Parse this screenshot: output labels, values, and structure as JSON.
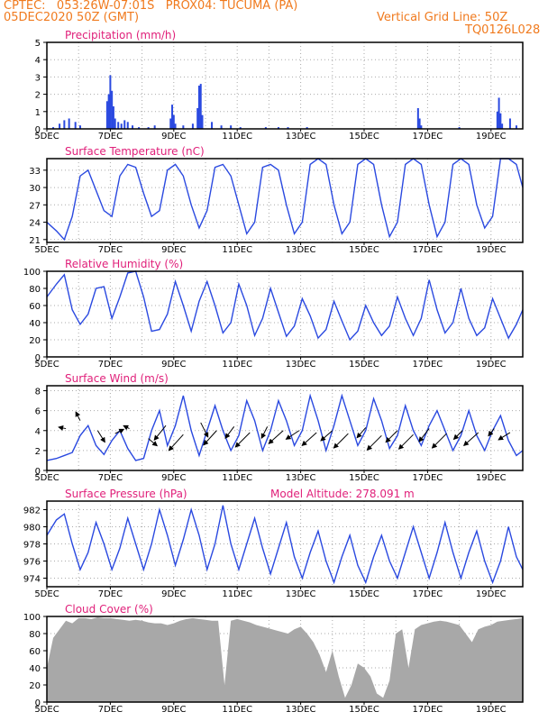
{
  "header": {
    "line1": "CPTEC:   053:26W-07:01S   PROX04: TUCUMA (PA)",
    "line2": "05DEC2020 50Z (GMT)",
    "grid_note": "Vertical Grid Line: 50Z",
    "code": "TQ0126L028",
    "model_altitude": "Model Altitude: 278.091 m"
  },
  "x_ticks": [
    "5DEC",
    "7DEC",
    "9DEC",
    "11DEC",
    "13DEC",
    "15DEC",
    "17DEC",
    "19DEC"
  ],
  "colors": {
    "header": "#f07a1e",
    "title": "#e0207a",
    "line": "#2a49e0",
    "cloud": "#a8a8a8",
    "arrow": "#000000"
  },
  "chart_data": [
    {
      "type": "bar",
      "id": "precip",
      "title": "Precipitation (mm/h)",
      "ylim": [
        0,
        5
      ],
      "yticks": [
        0,
        1,
        2,
        3,
        4,
        5
      ],
      "x": [
        0.2,
        0.4,
        0.55,
        0.7,
        0.9,
        1.05,
        1.9,
        1.95,
        2.0,
        2.05,
        2.1,
        2.15,
        2.25,
        2.35,
        2.45,
        2.55,
        2.7,
        2.9,
        3.2,
        3.4,
        3.9,
        3.95,
        4.0,
        4.05,
        4.3,
        4.6,
        4.75,
        4.8,
        4.85,
        4.9,
        5.2,
        5.5,
        5.8,
        6.1,
        6.9,
        7.3,
        7.6,
        8.2,
        11.7,
        11.75,
        11.8,
        13.0,
        14.2,
        14.25,
        14.3,
        14.35,
        14.6,
        14.8
      ],
      "values": [
        0.1,
        0.3,
        0.5,
        0.6,
        0.4,
        0.2,
        1.6,
        2.0,
        3.1,
        2.2,
        1.3,
        0.6,
        0.4,
        0.3,
        0.5,
        0.4,
        0.2,
        0.1,
        0.1,
        0.2,
        0.6,
        1.4,
        0.8,
        0.3,
        0.2,
        0.3,
        1.2,
        2.5,
        2.6,
        0.8,
        0.4,
        0.2,
        0.2,
        0.1,
        0.1,
        0.1,
        0.1,
        0.1,
        1.2,
        0.6,
        0.2,
        0.1,
        1.0,
        1.8,
        0.9,
        0.3,
        0.6,
        0.2
      ]
    },
    {
      "type": "line",
      "id": "temp",
      "title": "Surface Temperature (nC)",
      "ylim": [
        20.5,
        35
      ],
      "yticks": [
        21,
        24,
        27,
        30,
        33
      ],
      "x": [
        0,
        0.3,
        0.55,
        0.8,
        1.05,
        1.3,
        1.55,
        1.8,
        2.05,
        2.3,
        2.55,
        2.8,
        3.05,
        3.3,
        3.55,
        3.8,
        4.05,
        4.3,
        4.55,
        4.8,
        5.05,
        5.3,
        5.55,
        5.8,
        6.05,
        6.3,
        6.55,
        6.8,
        7.05,
        7.3,
        7.55,
        7.8,
        8.05,
        8.3,
        8.55,
        8.8,
        9.05,
        9.3,
        9.55,
        9.8,
        10.05,
        10.3,
        10.55,
        10.8,
        11.05,
        11.3,
        11.55,
        11.8,
        12.05,
        12.3,
        12.55,
        12.8,
        13.05,
        13.3,
        13.55,
        13.8,
        14.05,
        14.3,
        14.55,
        14.8,
        15.0
      ],
      "values": [
        24,
        22.5,
        21,
        25,
        32,
        33,
        29.5,
        26,
        25,
        32,
        34,
        33.5,
        29,
        25,
        26,
        33,
        34,
        32,
        27,
        23,
        26,
        33.5,
        34,
        32,
        27,
        22,
        24,
        33.5,
        34,
        33,
        27,
        22,
        24,
        34,
        35,
        34,
        27,
        22,
        24,
        34,
        35,
        34,
        27,
        21.5,
        24,
        34,
        35,
        34,
        27,
        21.5,
        24,
        34,
        35,
        34,
        27,
        23,
        25,
        35,
        35,
        34,
        30
      ]
    },
    {
      "type": "line",
      "id": "rh",
      "title": "Relative Humidity (%)",
      "ylim": [
        0,
        100
      ],
      "yticks": [
        0,
        20,
        40,
        60,
        80,
        100
      ],
      "x": [
        0,
        0.3,
        0.55,
        0.8,
        1.05,
        1.3,
        1.55,
        1.8,
        2.05,
        2.3,
        2.55,
        2.8,
        3.05,
        3.3,
        3.55,
        3.8,
        4.05,
        4.3,
        4.55,
        4.8,
        5.05,
        5.3,
        5.55,
        5.8,
        6.05,
        6.3,
        6.55,
        6.8,
        7.05,
        7.3,
        7.55,
        7.8,
        8.05,
        8.3,
        8.55,
        8.8,
        9.05,
        9.3,
        9.55,
        9.8,
        10.05,
        10.3,
        10.55,
        10.8,
        11.05,
        11.3,
        11.55,
        11.8,
        12.05,
        12.3,
        12.55,
        12.8,
        13.05,
        13.3,
        13.55,
        13.8,
        14.05,
        14.3,
        14.55,
        14.8,
        15.0
      ],
      "values": [
        70,
        85,
        96,
        55,
        38,
        50,
        80,
        82,
        45,
        70,
        98,
        100,
        70,
        30,
        32,
        50,
        88,
        60,
        30,
        65,
        88,
        60,
        28,
        40,
        85,
        60,
        25,
        45,
        80,
        52,
        24,
        36,
        68,
        48,
        22,
        32,
        65,
        42,
        20,
        30,
        60,
        40,
        25,
        36,
        70,
        45,
        25,
        45,
        90,
        55,
        28,
        40,
        80,
        45,
        25,
        34,
        68,
        45,
        22,
        38,
        55
      ]
    },
    {
      "type": "line",
      "id": "wind",
      "title": "Surface Wind (m/s)",
      "ylim": [
        0,
        8.5
      ],
      "yticks": [
        0,
        2,
        4,
        6,
        8
      ],
      "x": [
        0,
        0.3,
        0.55,
        0.8,
        1.05,
        1.3,
        1.55,
        1.8,
        2.05,
        2.3,
        2.55,
        2.8,
        3.05,
        3.3,
        3.55,
        3.8,
        4.05,
        4.3,
        4.55,
        4.8,
        5.05,
        5.3,
        5.55,
        5.8,
        6.05,
        6.3,
        6.55,
        6.8,
        7.05,
        7.3,
        7.55,
        7.8,
        8.05,
        8.3,
        8.55,
        8.8,
        9.05,
        9.3,
        9.55,
        9.8,
        10.05,
        10.3,
        10.55,
        10.8,
        11.05,
        11.3,
        11.55,
        11.8,
        12.05,
        12.3,
        12.55,
        12.8,
        13.05,
        13.3,
        13.55,
        13.8,
        14.05,
        14.3,
        14.55,
        14.8,
        15.0
      ],
      "values": [
        1,
        1.2,
        1.5,
        1.8,
        3.5,
        4.5,
        2.5,
        1.6,
        3,
        4,
        2.2,
        1,
        1.2,
        4,
        6,
        2.5,
        4.5,
        7.5,
        4,
        1.5,
        4,
        6.5,
        4,
        2,
        3.5,
        7,
        5,
        2,
        4,
        7,
        5,
        2.5,
        4,
        7.5,
        5,
        2,
        4.5,
        7.5,
        5,
        2.5,
        4,
        7.2,
        5,
        2.2,
        3.5,
        6.5,
        4,
        2.5,
        4.5,
        6,
        4,
        2,
        3.5,
        6,
        3.5,
        2,
        4,
        5.5,
        3,
        1.5,
        2
      ]
    },
    {
      "type": "line",
      "id": "press",
      "title": "Surface Pressure (hPa)",
      "ylim": [
        973,
        983
      ],
      "yticks": [
        974,
        976,
        978,
        980,
        982
      ],
      "x": [
        0,
        0.3,
        0.55,
        0.8,
        1.05,
        1.3,
        1.55,
        1.8,
        2.05,
        2.3,
        2.55,
        2.8,
        3.05,
        3.3,
        3.55,
        3.8,
        4.05,
        4.3,
        4.55,
        4.8,
        5.05,
        5.3,
        5.55,
        5.8,
        6.05,
        6.3,
        6.55,
        6.8,
        7.05,
        7.3,
        7.55,
        7.8,
        8.05,
        8.3,
        8.55,
        8.8,
        9.05,
        9.3,
        9.55,
        9.8,
        10.05,
        10.3,
        10.55,
        10.8,
        11.05,
        11.3,
        11.55,
        11.8,
        12.05,
        12.3,
        12.55,
        12.8,
        13.05,
        13.3,
        13.55,
        13.8,
        14.05,
        14.3,
        14.55,
        14.8,
        15.0
      ],
      "values": [
        979,
        980.8,
        981.5,
        978,
        975,
        977,
        980.5,
        978,
        975,
        977.5,
        981,
        978,
        975,
        978,
        982,
        979,
        975.5,
        978.5,
        982,
        979,
        975,
        978,
        982.5,
        978,
        975,
        978,
        981,
        977.5,
        974.5,
        977.5,
        980.5,
        976.5,
        974,
        977,
        979.5,
        976,
        973.5,
        976.5,
        979,
        975.5,
        973.5,
        976.5,
        979,
        976,
        974,
        977,
        980,
        977,
        974,
        977,
        980.5,
        977,
        974,
        977,
        979.5,
        976,
        973.5,
        976,
        980,
        976.5,
        975
      ]
    },
    {
      "type": "area",
      "id": "cloud",
      "title": "Cloud Cover (%)",
      "ylim": [
        0,
        100
      ],
      "yticks": [
        0,
        20,
        40,
        60,
        80,
        100
      ],
      "x": [
        0,
        0.2,
        0.4,
        0.6,
        0.8,
        1.0,
        1.2,
        1.4,
        1.6,
        1.8,
        2.0,
        2.2,
        2.4,
        2.6,
        2.8,
        3.0,
        3.2,
        3.4,
        3.6,
        3.8,
        4.0,
        4.2,
        4.4,
        4.6,
        4.8,
        5.0,
        5.2,
        5.4,
        5.6,
        5.8,
        6.0,
        6.2,
        6.4,
        6.6,
        6.8,
        7.0,
        7.2,
        7.4,
        7.6,
        7.8,
        8.0,
        8.2,
        8.4,
        8.6,
        8.8,
        9.0,
        9.2,
        9.4,
        9.6,
        9.8,
        10.0,
        10.2,
        10.4,
        10.6,
        10.8,
        11.0,
        11.2,
        11.4,
        11.6,
        11.8,
        12.0,
        12.2,
        12.4,
        12.6,
        12.8,
        13.0,
        13.2,
        13.4,
        13.6,
        13.8,
        14.0,
        14.2,
        14.4,
        14.6,
        14.8,
        15.0
      ],
      "values": [
        40,
        75,
        85,
        95,
        92,
        98,
        98,
        97,
        99,
        98,
        98,
        97,
        96,
        95,
        96,
        95,
        93,
        92,
        92,
        90,
        92,
        95,
        97,
        98,
        97,
        96,
        95,
        95,
        20,
        95,
        97,
        95,
        93,
        90,
        88,
        86,
        84,
        82,
        80,
        85,
        88,
        80,
        70,
        55,
        35,
        60,
        30,
        5,
        20,
        45,
        40,
        30,
        10,
        5,
        25,
        80,
        85,
        40,
        85,
        90,
        92,
        94,
        95,
        94,
        92,
        90,
        80,
        70,
        85,
        88,
        90,
        94,
        95,
        96,
        97,
        98
      ]
    }
  ],
  "wind_vectors": {
    "x": [
      0.6,
      1.05,
      1.6,
      2.15,
      2.6,
      3.2,
      3.75,
      4.3,
      4.85,
      5.35,
      5.9,
      6.4,
      6.95,
      7.45,
      7.95,
      8.5,
      9.0,
      9.5,
      10.05,
      10.55,
      11.05,
      11.55,
      12.05,
      12.6,
      13.1,
      13.6,
      14.1,
      14.6
    ],
    "y": [
      4.2,
      5.0,
      4.0,
      3.7,
      4.2,
      3.2,
      4.5,
      3.6,
      4.8,
      4.0,
      4.4,
      3.8,
      4.4,
      4.0,
      4.0,
      3.8,
      4.0,
      3.7,
      4.3,
      3.5,
      4.0,
      3.6,
      4.2,
      3.7,
      4.0,
      3.8,
      4.2,
      3.8
    ],
    "u": [
      -0.5,
      -0.3,
      0.5,
      0.6,
      -0.4,
      0.6,
      -0.8,
      -1.0,
      0.5,
      -0.9,
      -0.6,
      -1.0,
      -0.4,
      -1.0,
      -0.9,
      -1.0,
      -0.8,
      -1.0,
      -0.6,
      -1.0,
      -0.8,
      -1.0,
      -0.7,
      -1.0,
      -0.6,
      -1.0,
      -0.4,
      -0.8
    ],
    "v": [
      0.1,
      0.6,
      -0.8,
      0.3,
      0.2,
      -0.5,
      -1.0,
      -1.1,
      -1.0,
      -1.0,
      -0.8,
      -1.0,
      -0.8,
      -0.9,
      -0.6,
      -0.9,
      -0.7,
      -1.0,
      -0.7,
      -1.0,
      -0.8,
      -1.0,
      -0.9,
      -1.0,
      -0.6,
      -0.9,
      -0.5,
      -0.5
    ]
  }
}
